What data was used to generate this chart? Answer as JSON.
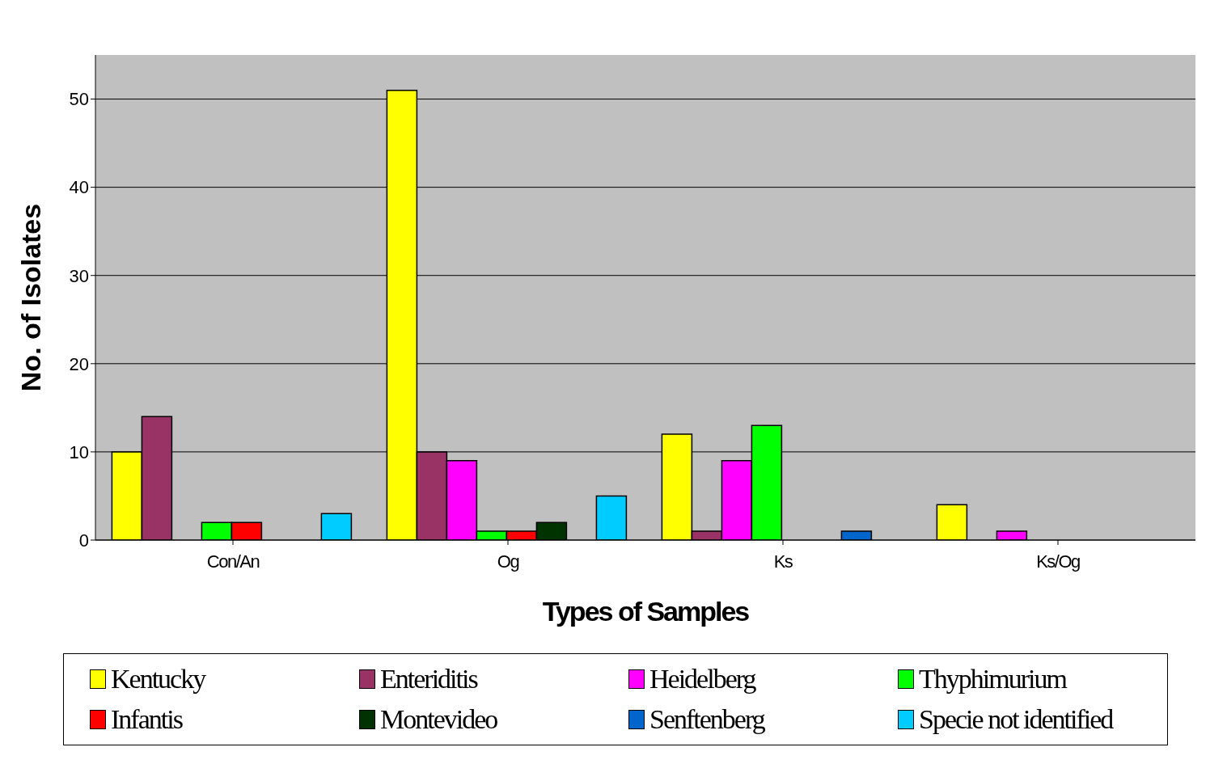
{
  "chart_data": {
    "type": "bar",
    "xlabel": "Types of Samples",
    "ylabel": "No. of Isolates",
    "categories": [
      "Con/An",
      "Og",
      "Ks",
      "Ks/Og"
    ],
    "ylim": [
      0,
      55
    ],
    "yticks": [
      0,
      10,
      20,
      30,
      40,
      50
    ],
    "grid": "y",
    "legend": "bottom",
    "series": [
      {
        "name": "Kentucky",
        "color": "#ffff00",
        "values": [
          10,
          51,
          12,
          4
        ]
      },
      {
        "name": "Enteriditis",
        "color": "#993366",
        "values": [
          14,
          10,
          1,
          0
        ]
      },
      {
        "name": "Heidelberg",
        "color": "#ff00ff",
        "values": [
          0,
          9,
          9,
          1
        ]
      },
      {
        "name": "Thyphimurium",
        "color": "#00ff00",
        "values": [
          2,
          1,
          13,
          0
        ]
      },
      {
        "name": "Infantis",
        "color": "#ff0000",
        "values": [
          2,
          1,
          0,
          0
        ]
      },
      {
        "name": "Montevideo",
        "color": "#003300",
        "values": [
          0,
          2,
          0,
          0
        ]
      },
      {
        "name": "Senftenberg",
        "color": "#0066cc",
        "values": [
          0,
          0,
          1,
          0
        ]
      },
      {
        "name": "Specie not identified",
        "color": "#00ccff",
        "values": [
          3,
          5,
          0,
          0
        ]
      }
    ]
  }
}
